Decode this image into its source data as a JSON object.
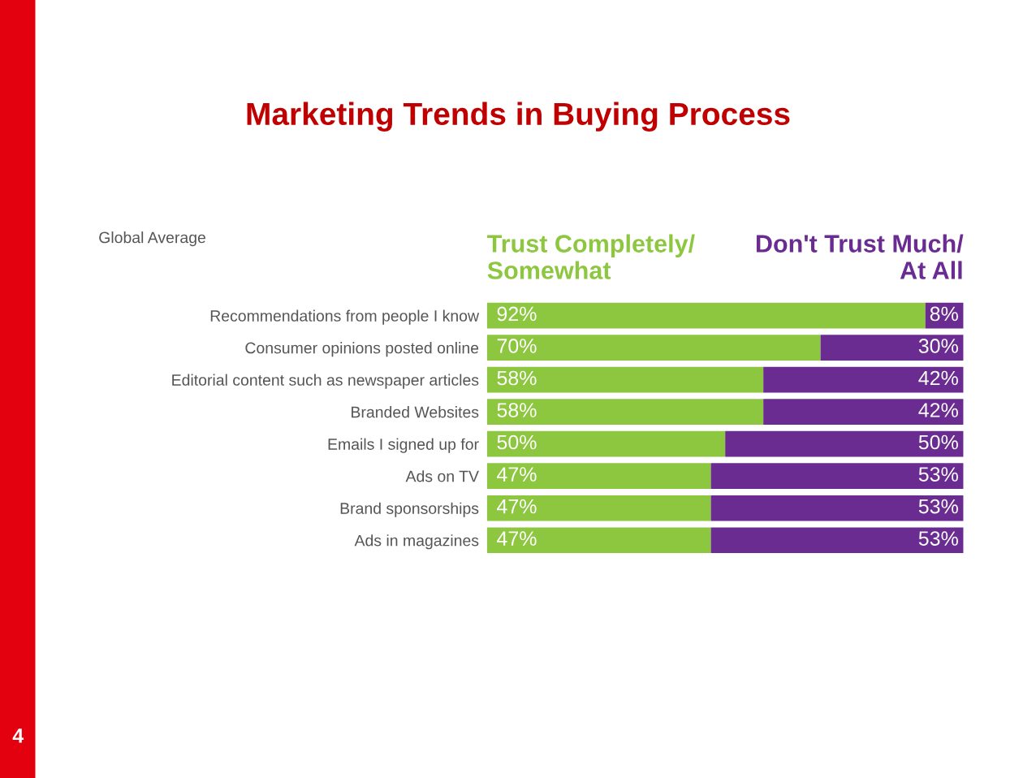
{
  "chart_data": {
    "type": "bar",
    "orientation": "horizontal",
    "stacked": true,
    "title": "Marketing Trends in Buying Process",
    "subtitle": "Global Average",
    "categories": [
      "Recommendations from people I know",
      "Consumer opinions posted online",
      "Editorial content such as newspaper articles",
      "Branded Websites",
      "Emails I signed up for",
      "Ads on TV",
      "Brand sponsorships",
      "Ads in magazines"
    ],
    "series": [
      {
        "name": "Trust Completely/\nSomewhat",
        "color": "#8dc63f",
        "values": [
          92,
          70,
          58,
          58,
          50,
          47,
          47,
          47
        ],
        "value_labels": [
          "92%",
          "70%",
          "58%",
          "58%",
          "50%",
          "47%",
          "47%",
          "47%"
        ]
      },
      {
        "name": "Don't Trust Much/\nAt All",
        "color": "#6a2c91",
        "values": [
          8,
          30,
          42,
          42,
          50,
          53,
          53,
          53
        ],
        "value_labels": [
          "8%",
          "30%",
          "42%",
          "42%",
          "50%",
          "53%",
          "53%",
          "53%"
        ]
      }
    ],
    "xlim": [
      0,
      100
    ],
    "tick_labels": "y",
    "legend": "top",
    "grid": false,
    "annotations": [
      "4"
    ]
  }
}
